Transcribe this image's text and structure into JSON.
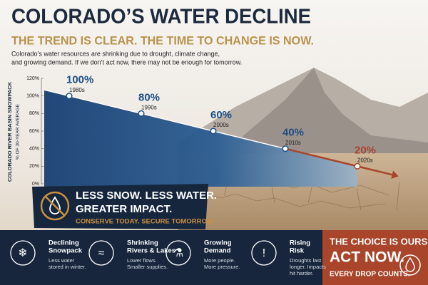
{
  "header": {
    "title": "COLORADO’S WATER DECLINE",
    "subtitle": "THE TREND IS CLEAR. THE TIME TO CHANGE IS NOW.",
    "description": [
      "Colorado’s water resources are shrinking due to drought, climate change,",
      "and growing demand. If we don’t act now, there may not be enough for tomorrow."
    ]
  },
  "chart_data": {
    "type": "line",
    "y_label": [
      "COLORADO RIVER BASIN SNOWPACK",
      "% OF 30-YEAR AVERAGE"
    ],
    "categories": [
      "1980s",
      "1990s",
      "2000s",
      "2010s",
      "2020s"
    ],
    "values": [
      100,
      80,
      60,
      40,
      20
    ],
    "value_labels": [
      "100%",
      "80%",
      "60%",
      "40%",
      "20%"
    ],
    "color": "#1d4f86",
    "ylim": [
      0,
      120
    ],
    "yticks": [
      {
        "value": 0,
        "label": "0%"
      },
      {
        "value": 20,
        "label": "20%"
      },
      {
        "value": 40,
        "label": "40%"
      },
      {
        "value": 60,
        "label": "60%"
      },
      {
        "value": 80,
        "label": "80%"
      },
      {
        "value": 100,
        "label": "100%"
      },
      {
        "value": 120,
        "label": "120%"
      }
    ]
  },
  "banner": {
    "lines": [
      "LESS SNOW. LESS WATER.",
      "GREATER IMPACT."
    ],
    "tagline": "CONSERVE TODAY. SECURE TOMORROW."
  },
  "footer": {
    "items": [
      {
        "title": [
          "Declining",
          "Snowpack"
        ],
        "text": [
          "Less water",
          "stored in winter."
        ]
      },
      {
        "title": [
          "Shrinking",
          "Rivers & Lakes"
        ],
        "text": [
          "Lower flows.",
          "Smaller supplies."
        ]
      },
      {
        "title": [
          "Growing",
          "Demand"
        ],
        "text": [
          "More people.",
          "More pressure."
        ]
      },
      {
        "title": [
          "Rising",
          "Risk"
        ],
        "text": [
          "Droughts last",
          "longer. Impacts",
          "hit harder."
        ]
      }
    ],
    "cta": {
      "line1": "THE CHOICE IS OURS.",
      "line2": "ACT NOW.",
      "line3": "EVERY DROP COUNTS."
    }
  }
}
